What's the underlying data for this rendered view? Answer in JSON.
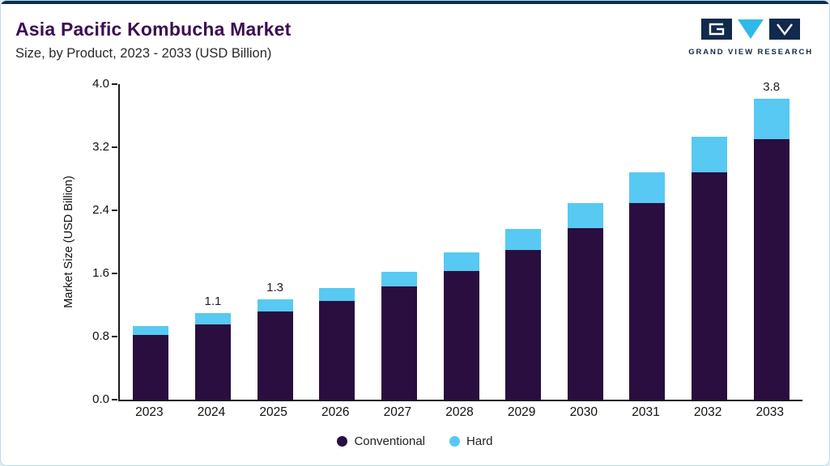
{
  "header": {
    "title": "Asia Pacific Kombucha Market",
    "subtitle": "Size, by Product, 2023 - 2033 (USD Billion)",
    "brand": "GRAND VIEW RESEARCH"
  },
  "colors": {
    "conventional": "#2a0e3f",
    "hard": "#57c9f2",
    "accent_bar": "#0e2c4e",
    "title": "#3c0e52"
  },
  "chart_data": {
    "type": "bar",
    "stacked": true,
    "title": "Asia Pacific Kombucha Market",
    "subtitle": "Size, by Product, 2023 - 2033 (USD Billion)",
    "xlabel": "",
    "ylabel": "Market Size (USD Billion)",
    "categories": [
      "2023",
      "2024",
      "2025",
      "2026",
      "2027",
      "2028",
      "2029",
      "2030",
      "2031",
      "2032",
      "2033"
    ],
    "series": [
      {
        "name": "Conventional",
        "color": "#2a0e3f",
        "values": [
          0.82,
          0.95,
          1.12,
          1.25,
          1.44,
          1.63,
          1.9,
          2.17,
          2.49,
          2.88,
          3.3
        ]
      },
      {
        "name": "Hard",
        "color": "#57c9f2",
        "values": [
          0.11,
          0.15,
          0.15,
          0.17,
          0.18,
          0.24,
          0.26,
          0.32,
          0.39,
          0.45,
          0.52
        ]
      }
    ],
    "totals": [
      0.93,
      1.1,
      1.27,
      1.42,
      1.62,
      1.87,
      2.16,
      2.49,
      2.88,
      3.33,
      3.82
    ],
    "point_labels": [
      "",
      "1.1",
      "1.3",
      "",
      "",
      "",
      "",
      "",
      "",
      "",
      "3.8"
    ],
    "yticks": [
      0.0,
      0.8,
      1.6,
      2.4,
      3.2,
      4.0
    ],
    "ylim": [
      0,
      4.0
    ],
    "grid": false,
    "legend_position": "bottom-center"
  }
}
